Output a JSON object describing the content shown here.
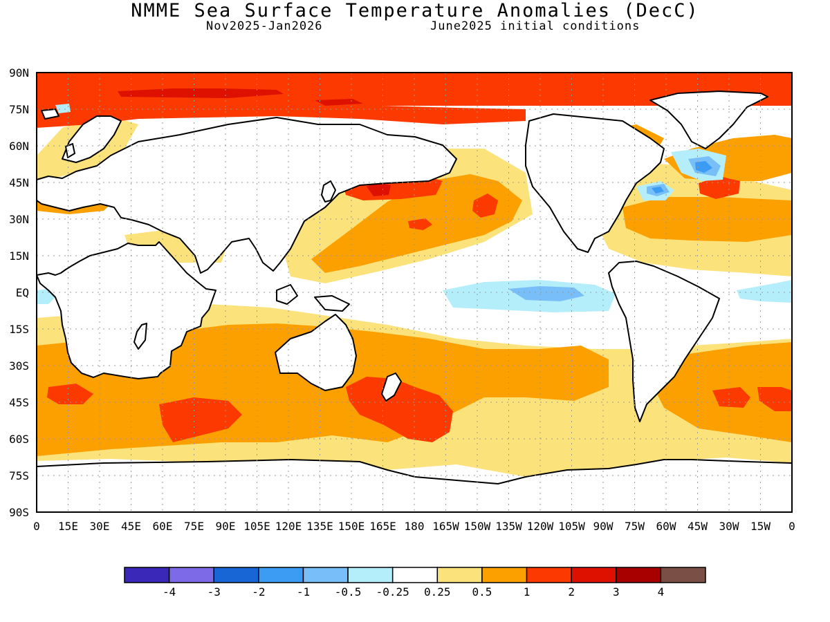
{
  "title": "NMME Sea Surface Temperature Anomalies (DecC)",
  "subtitle_left": "Nov2025-Jan2026",
  "subtitle_right": "June2025 initial conditions",
  "map": {
    "lat_labels": [
      "90N",
      "75N",
      "60N",
      "45N",
      "30N",
      "15N",
      "EQ",
      "15S",
      "30S",
      "45S",
      "60S",
      "75S",
      "90S"
    ],
    "lon_labels": [
      "0",
      "15E",
      "30E",
      "45E",
      "60E",
      "75E",
      "90E",
      "105E",
      "120E",
      "135E",
      "150E",
      "165E",
      "180",
      "165W",
      "150W",
      "135W",
      "120W",
      "105W",
      "90W",
      "75W",
      "60W",
      "45W",
      "30W",
      "15W",
      "0"
    ],
    "grid": "dotted",
    "land_color": "#ffffff"
  },
  "colorbar": {
    "colors": [
      "#3a28b8",
      "#7c6ae6",
      "#1866d6",
      "#3c9cf4",
      "#78bef8",
      "#b4eefa",
      "#ffffff",
      "#fce27a",
      "#fca000",
      "#fc3a00",
      "#de1000",
      "#a80000",
      "#7a5046"
    ],
    "tick_labels": [
      "-4",
      "-3",
      "-2",
      "-1",
      "-0.5",
      "-0.25",
      "0.25",
      "0.5",
      "1",
      "2",
      "3",
      "4"
    ]
  }
}
